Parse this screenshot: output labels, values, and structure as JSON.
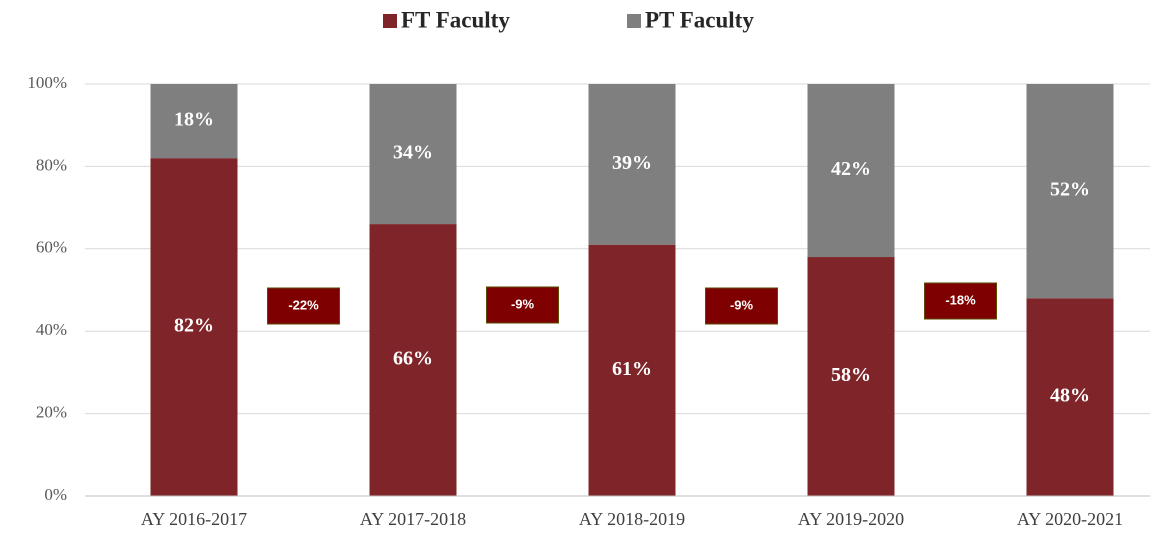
{
  "chart_data": {
    "type": "stacked_bar",
    "categories": [
      "AY 2016-2017",
      "AY 2017-2018",
      "AY 2018-2019",
      "AY 2019-2020",
      "AY 2020-2021"
    ],
    "series": [
      {
        "name": "FT Faculty",
        "color": "#7f2529",
        "values": [
          82,
          66,
          61,
          58,
          48
        ],
        "value_labels": [
          "82%",
          "66%",
          "61%",
          "58%",
          "48%"
        ]
      },
      {
        "name": "PT Faculty",
        "color": "#7f7f7f",
        "values": [
          18,
          34,
          39,
          42,
          52
        ],
        "value_labels": [
          "18%",
          "34%",
          "39%",
          "42%",
          "52%"
        ]
      }
    ],
    "annotations": [
      "-22%",
      "-9%",
      "-9%",
      "-18%"
    ],
    "ylim": [
      0,
      100
    ],
    "yticks": [
      {
        "value": 0,
        "label": "0%"
      },
      {
        "value": 20,
        "label": "20%"
      },
      {
        "value": 40,
        "label": "40%"
      },
      {
        "value": 60,
        "label": "60%"
      },
      {
        "value": 80,
        "label": "80%"
      },
      {
        "value": 100,
        "label": "100%"
      }
    ],
    "grid": true,
    "legend": "top"
  }
}
